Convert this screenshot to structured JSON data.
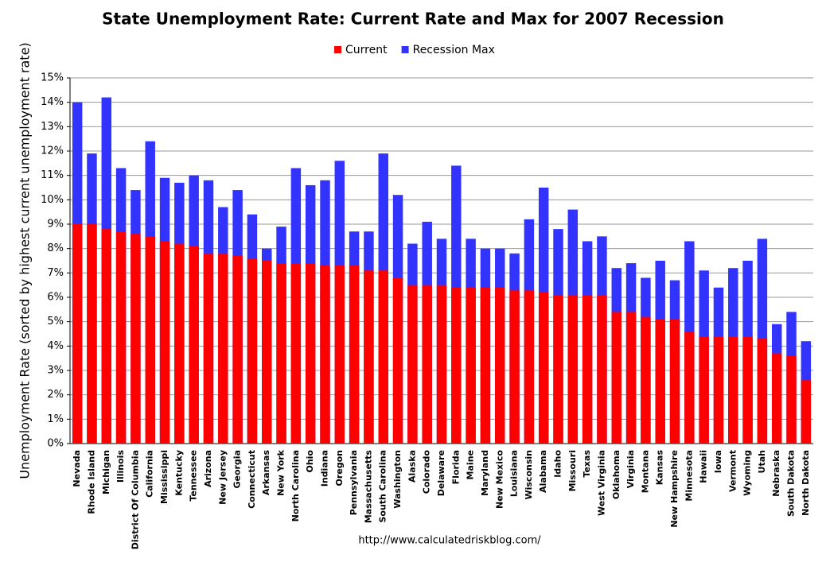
{
  "chart_data": {
    "type": "bar",
    "barmode": "overlay",
    "title": "State Unemployment Rate: Current Rate and Max for 2007 Recession",
    "y_label": "Unemployment Rate (sorted by highest current unemployment rate)",
    "source": "http://www.calculatedriskblog.com/",
    "categories": [
      "Nevada",
      "Rhode Island",
      "Michigan",
      "Illinois",
      "District Of Columbia",
      "California",
      "Mississippi",
      "Kentucky",
      "Tennessee",
      "Arizona",
      "New Jersey",
      "Georgia",
      "Connecticut",
      "Arkansas",
      "New York",
      "North Carolina",
      "Ohio",
      "Indiana",
      "Oregon",
      "Pennsylvania",
      "Massachusetts",
      "South Carolina",
      "Washington",
      "Alaska",
      "Colorado",
      "Delaware",
      "Florida",
      "Maine",
      "Maryland",
      "New Mexico",
      "Louisiana",
      "Wisconsin",
      "Alabama",
      "Idaho",
      "Missouri",
      "Texas",
      "West Virginia",
      "Oklahoma",
      "Virginia",
      "Montana",
      "Kansas",
      "New Hampshire",
      "Minnesota",
      "Hawaii",
      "Iowa",
      "Vermont",
      "Wyoming",
      "Utah",
      "Nebraska",
      "South Dakota",
      "North Dakota"
    ],
    "series": [
      {
        "name": "Recession Max",
        "color": "#3333ff",
        "values": [
          14.0,
          11.9,
          14.2,
          11.3,
          10.4,
          12.4,
          10.9,
          10.7,
          11.0,
          10.8,
          9.7,
          10.4,
          9.4,
          8.0,
          8.9,
          11.3,
          10.6,
          10.8,
          11.6,
          8.7,
          8.7,
          11.9,
          10.2,
          8.2,
          9.1,
          8.4,
          11.4,
          8.4,
          8.0,
          8.0,
          7.8,
          9.2,
          10.5,
          8.8,
          9.6,
          8.3,
          8.5,
          7.2,
          7.4,
          6.8,
          7.5,
          6.7,
          8.3,
          7.1,
          6.4,
          7.2,
          7.5,
          8.4,
          4.9,
          5.4,
          4.2
        ]
      },
      {
        "name": "Current",
        "color": "#ff0000",
        "values": [
          9.0,
          9.0,
          8.8,
          8.7,
          8.6,
          8.5,
          8.3,
          8.2,
          8.1,
          7.8,
          7.8,
          7.7,
          7.6,
          7.5,
          7.4,
          7.4,
          7.4,
          7.3,
          7.3,
          7.3,
          7.1,
          7.1,
          6.8,
          6.5,
          6.5,
          6.5,
          6.4,
          6.4,
          6.4,
          6.4,
          6.3,
          6.3,
          6.2,
          6.1,
          6.1,
          6.1,
          6.1,
          5.4,
          5.4,
          5.2,
          5.1,
          5.1,
          4.6,
          4.4,
          4.4,
          4.4,
          4.4,
          4.3,
          3.7,
          3.6,
          2.6
        ]
      }
    ],
    "legend_order": [
      1,
      0
    ],
    "ylim": [
      0,
      15
    ],
    "yticks": [
      {
        "value": 0,
        "label": "0%"
      },
      {
        "value": 1,
        "label": "1%"
      },
      {
        "value": 2,
        "label": "2%"
      },
      {
        "value": 3,
        "label": "3%"
      },
      {
        "value": 4,
        "label": "4%"
      },
      {
        "value": 5,
        "label": "5%"
      },
      {
        "value": 6,
        "label": "6%"
      },
      {
        "value": 7,
        "label": "7%"
      },
      {
        "value": 8,
        "label": "8%"
      },
      {
        "value": 9,
        "label": "9%"
      },
      {
        "value": 10,
        "label": "10%"
      },
      {
        "value": 11,
        "label": "11%"
      },
      {
        "value": 12,
        "label": "12%"
      },
      {
        "value": 13,
        "label": "13%"
      },
      {
        "value": 14,
        "label": "14%"
      },
      {
        "value": 15,
        "label": "15%"
      }
    ],
    "grid": true
  }
}
